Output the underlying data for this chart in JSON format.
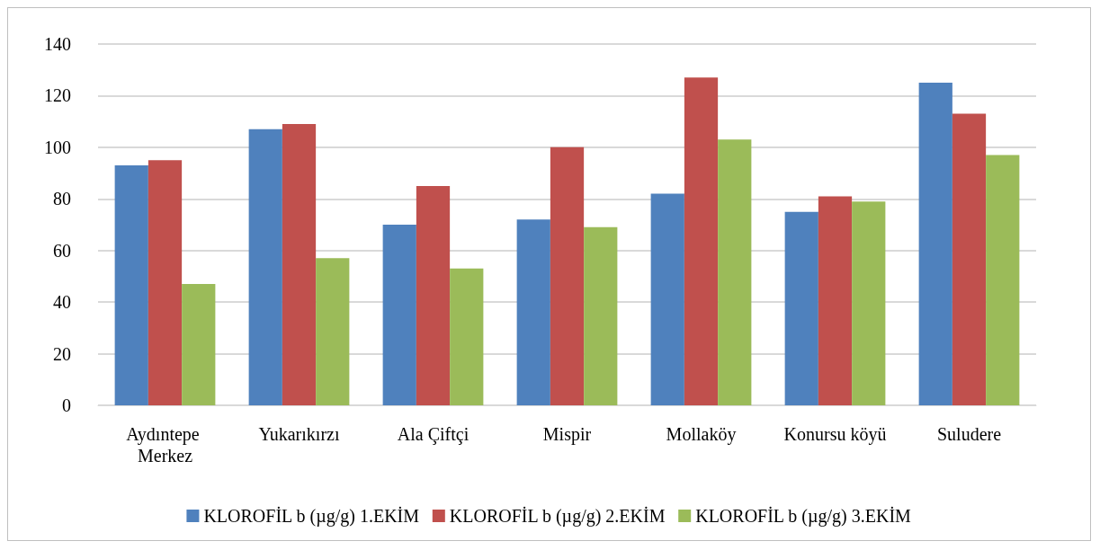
{
  "chart_data": {
    "type": "bar",
    "categories": [
      "Aydıntepe Merkez",
      "Yukarıkırzı",
      "Ala Çiftçi",
      "Mispir",
      "Mollaköy",
      "Konursu köyü",
      "Suludere"
    ],
    "series": [
      {
        "name": "KLOROFİL b (µg/g) 1.EKİM",
        "color": "#4f81bd",
        "values": [
          93,
          107,
          70,
          72,
          82,
          75,
          125
        ]
      },
      {
        "name": "KLOROFİL b (µg/g) 2.EKİM",
        "color": "#c0504d",
        "values": [
          95,
          109,
          85,
          100,
          127,
          81,
          113
        ]
      },
      {
        "name": "KLOROFİL b (µg/g) 3.EKİM",
        "color": "#9bbb59",
        "values": [
          47,
          57,
          53,
          69,
          103,
          79,
          97
        ]
      }
    ],
    "ylim": [
      0,
      140
    ],
    "yticks": [
      0,
      20,
      40,
      60,
      80,
      100,
      120,
      140
    ],
    "grid": "y",
    "legend": "bottom"
  }
}
